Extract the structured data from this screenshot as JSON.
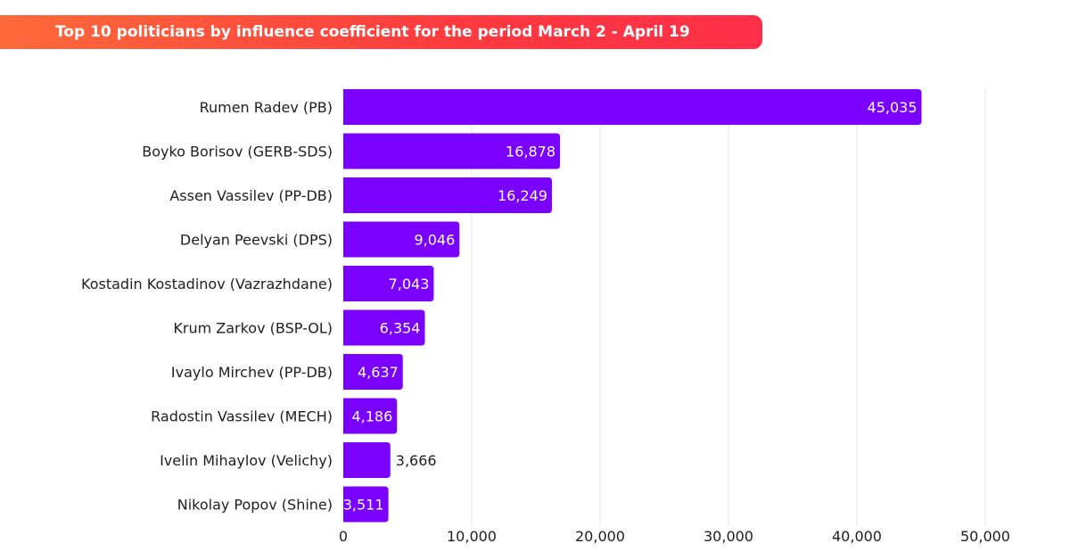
{
  "title": "Top 10 politicians by influence coefficient for the period March 2 - April 19",
  "colors": {
    "bar": "#7a00ff",
    "title_banner_start": "#ff6a3a",
    "title_banner_end": "#ff2f48",
    "grid": "#e6e6e6",
    "label_inside": "#ffffff",
    "label_outside": "#1f1f1f"
  },
  "chart_data": {
    "type": "bar",
    "orientation": "horizontal",
    "title": "Top 10 politicians by influence coefficient for the period March 2 - April 19",
    "categories": [
      "Rumen Radev (PB)",
      "Boyko Borisov (GERB-SDS)",
      "Assen Vassilev (PP-DB)",
      "Delyan Peevski (DPS)",
      "Kostadin Kostadinov (Vazrazhdane)",
      "Krum Zarkov (BSP-OL)",
      "Ivaylo Mirchev (PP-DB)",
      "Radostin Vassilev (MECH)",
      "Ivelin Mihaylov (Velichy)",
      "Nikolay Popov (Shine)"
    ],
    "values": [
      45035,
      16878,
      16249,
      9046,
      7043,
      6354,
      4637,
      4186,
      3666,
      3511
    ],
    "value_labels": [
      "45,035",
      "16,878",
      "16,249",
      "9,046",
      "7,043",
      "6,354",
      "4,637",
      "4,186",
      "3,666",
      "3,511"
    ],
    "label_outside_bar": [
      false,
      false,
      false,
      false,
      false,
      false,
      false,
      false,
      true,
      false
    ],
    "xlim": [
      0,
      50000
    ],
    "x_ticks": [
      0,
      10000,
      20000,
      30000,
      40000,
      50000
    ],
    "x_tick_labels": [
      "0",
      "10,000",
      "20,000",
      "30,000",
      "40,000",
      "50,000"
    ],
    "xlabel": "",
    "ylabel": "",
    "grid": "vertical",
    "legend": "none"
  }
}
